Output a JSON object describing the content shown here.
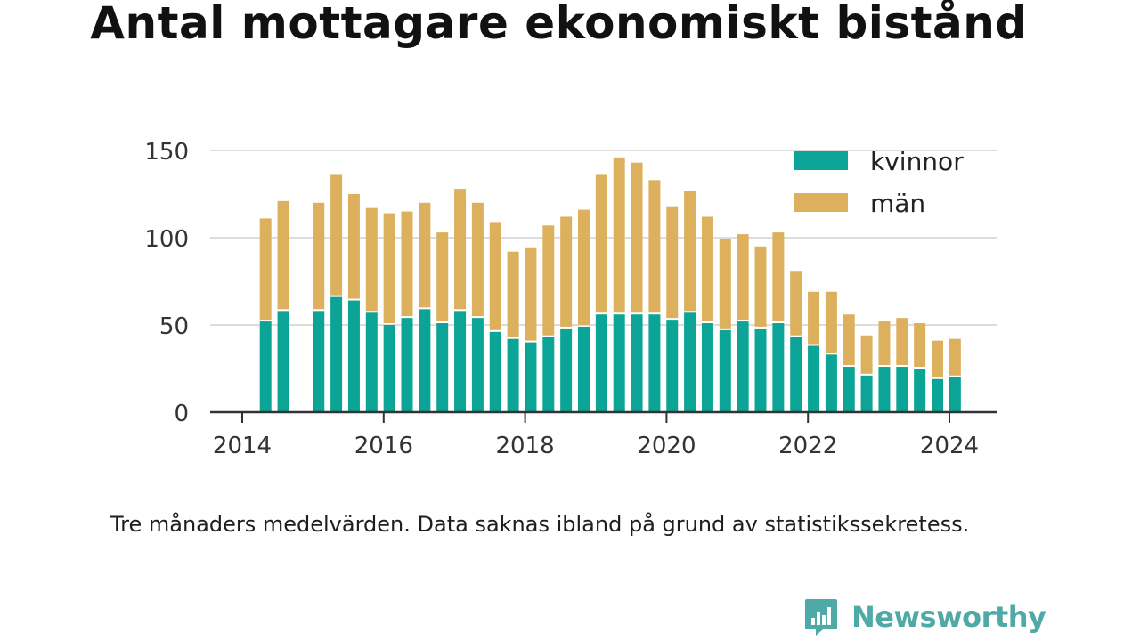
{
  "title": "Antal mottagare ekonomiskt bistånd",
  "note": "Tre månaders medelvärden. Data saknas ibland på grund av statistikssekretess.",
  "brand": {
    "name": "Newsworthy",
    "icon": "newsworthy-logo-icon"
  },
  "colors": {
    "kvinnor": "#0ba496",
    "man": "#ddb05e",
    "grid": "#dddddd",
    "axis": "#333333"
  },
  "chart_data": {
    "type": "bar",
    "stacked": true,
    "x_is_date": true,
    "xlim": [
      2013.6,
      2025.1
    ],
    "ylim": [
      0,
      150
    ],
    "y_ticks": [
      0,
      50,
      100,
      150
    ],
    "x_ticks": [
      2014,
      2016,
      2018,
      2020,
      2022,
      2024
    ],
    "grid": true,
    "legend_position": "top-right",
    "series_names": [
      "kvinnor",
      "män"
    ],
    "points": [
      {
        "x": 2014.33,
        "kvinnor": 52,
        "man": 59
      },
      {
        "x": 2014.58,
        "kvinnor": 58,
        "man": 63
      },
      {
        "x": 2015.08,
        "kvinnor": 58,
        "man": 62
      },
      {
        "x": 2015.33,
        "kvinnor": 66,
        "man": 70
      },
      {
        "x": 2015.58,
        "kvinnor": 64,
        "man": 61
      },
      {
        "x": 2015.83,
        "kvinnor": 57,
        "man": 60
      },
      {
        "x": 2016.08,
        "kvinnor": 50,
        "man": 64
      },
      {
        "x": 2016.33,
        "kvinnor": 54,
        "man": 61
      },
      {
        "x": 2016.58,
        "kvinnor": 59,
        "man": 61
      },
      {
        "x": 2016.83,
        "kvinnor": 51,
        "man": 52
      },
      {
        "x": 2017.08,
        "kvinnor": 58,
        "man": 70
      },
      {
        "x": 2017.33,
        "kvinnor": 54,
        "man": 66
      },
      {
        "x": 2017.58,
        "kvinnor": 46,
        "man": 63
      },
      {
        "x": 2017.83,
        "kvinnor": 42,
        "man": 50
      },
      {
        "x": 2018.08,
        "kvinnor": 40,
        "man": 54
      },
      {
        "x": 2018.33,
        "kvinnor": 43,
        "man": 64
      },
      {
        "x": 2018.58,
        "kvinnor": 48,
        "man": 64
      },
      {
        "x": 2018.83,
        "kvinnor": 49,
        "man": 67
      },
      {
        "x": 2019.08,
        "kvinnor": 56,
        "man": 80
      },
      {
        "x": 2019.33,
        "kvinnor": 56,
        "man": 90
      },
      {
        "x": 2019.58,
        "kvinnor": 56,
        "man": 87
      },
      {
        "x": 2019.83,
        "kvinnor": 56,
        "man": 77
      },
      {
        "x": 2020.08,
        "kvinnor": 53,
        "man": 65
      },
      {
        "x": 2020.33,
        "kvinnor": 57,
        "man": 70
      },
      {
        "x": 2020.58,
        "kvinnor": 51,
        "man": 61
      },
      {
        "x": 2020.83,
        "kvinnor": 47,
        "man": 52
      },
      {
        "x": 2021.08,
        "kvinnor": 52,
        "man": 50
      },
      {
        "x": 2021.33,
        "kvinnor": 48,
        "man": 47
      },
      {
        "x": 2021.58,
        "kvinnor": 51,
        "man": 52
      },
      {
        "x": 2021.83,
        "kvinnor": 43,
        "man": 38
      },
      {
        "x": 2022.08,
        "kvinnor": 38,
        "man": 31
      },
      {
        "x": 2022.33,
        "kvinnor": 33,
        "man": 36
      },
      {
        "x": 2022.58,
        "kvinnor": 26,
        "man": 30
      },
      {
        "x": 2022.83,
        "kvinnor": 21,
        "man": 23
      },
      {
        "x": 2023.08,
        "kvinnor": 26,
        "man": 26
      },
      {
        "x": 2023.33,
        "kvinnor": 26,
        "man": 28
      },
      {
        "x": 2023.58,
        "kvinnor": 25,
        "man": 26
      },
      {
        "x": 2023.83,
        "kvinnor": 19,
        "man": 22
      },
      {
        "x": 2024.08,
        "kvinnor": 20,
        "man": 22
      }
    ]
  }
}
